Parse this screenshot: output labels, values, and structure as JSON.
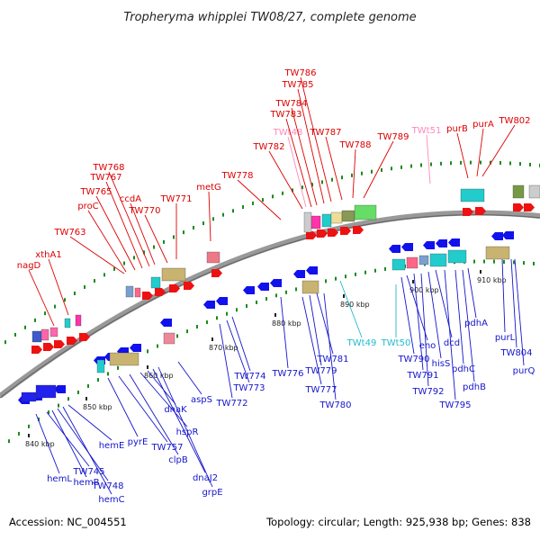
{
  "title": "Tropheryma whipplei TW08/27, complete genome",
  "footer": {
    "accession": "Accession: NC_004551",
    "stats": "Topology: circular; Length: 925,938 bp; Genes: 838"
  },
  "colors": {
    "forward_label": "#dd0000",
    "reverse_label": "#1515cc",
    "trna_forward": "#ff88bb",
    "trna_reverse": "#22bbcc",
    "backbone": "#888888",
    "tick": "#1a8a1a"
  },
  "scale": [
    {
      "label": "840 kbp"
    },
    {
      "label": "850 kbp"
    },
    {
      "label": "860 kbp"
    },
    {
      "label": "870 kbp"
    },
    {
      "label": "880 kbp"
    },
    {
      "label": "890 kbp"
    },
    {
      "label": "900 kbp"
    },
    {
      "label": "910 kbp"
    }
  ],
  "forward_labels": [
    "nagD",
    "xthA1",
    "TW763",
    "proC",
    "TW765",
    "TW767",
    "TW768",
    "ccdA",
    "TW770",
    "TW771",
    "metG",
    "TW778",
    "TW782",
    "TWt48",
    "TW783",
    "TW784",
    "TW785",
    "TW786",
    "TW787",
    "TW788",
    "TW789",
    "TWt51",
    "purB",
    "purA",
    "TW802"
  ],
  "reverse_labels": [
    "hemL",
    "TW745",
    "hemB",
    "TW748",
    "hemC",
    "hemE",
    "pyrE",
    "TW757",
    "clpB",
    "hspR",
    "dnaK",
    "dnaJ2",
    "grpE",
    "aspS",
    "TW772",
    "TW773",
    "TW774",
    "TW776",
    "TW777",
    "TW779",
    "TW781",
    "TW780",
    "TWt49",
    "TWt50",
    "TW790",
    "eno",
    "TW791",
    "TW792",
    "hisS",
    "dcd",
    "TW795",
    "pdhC",
    "pdhB",
    "pdhA",
    "purL",
    "TW804",
    "purQ"
  ]
}
